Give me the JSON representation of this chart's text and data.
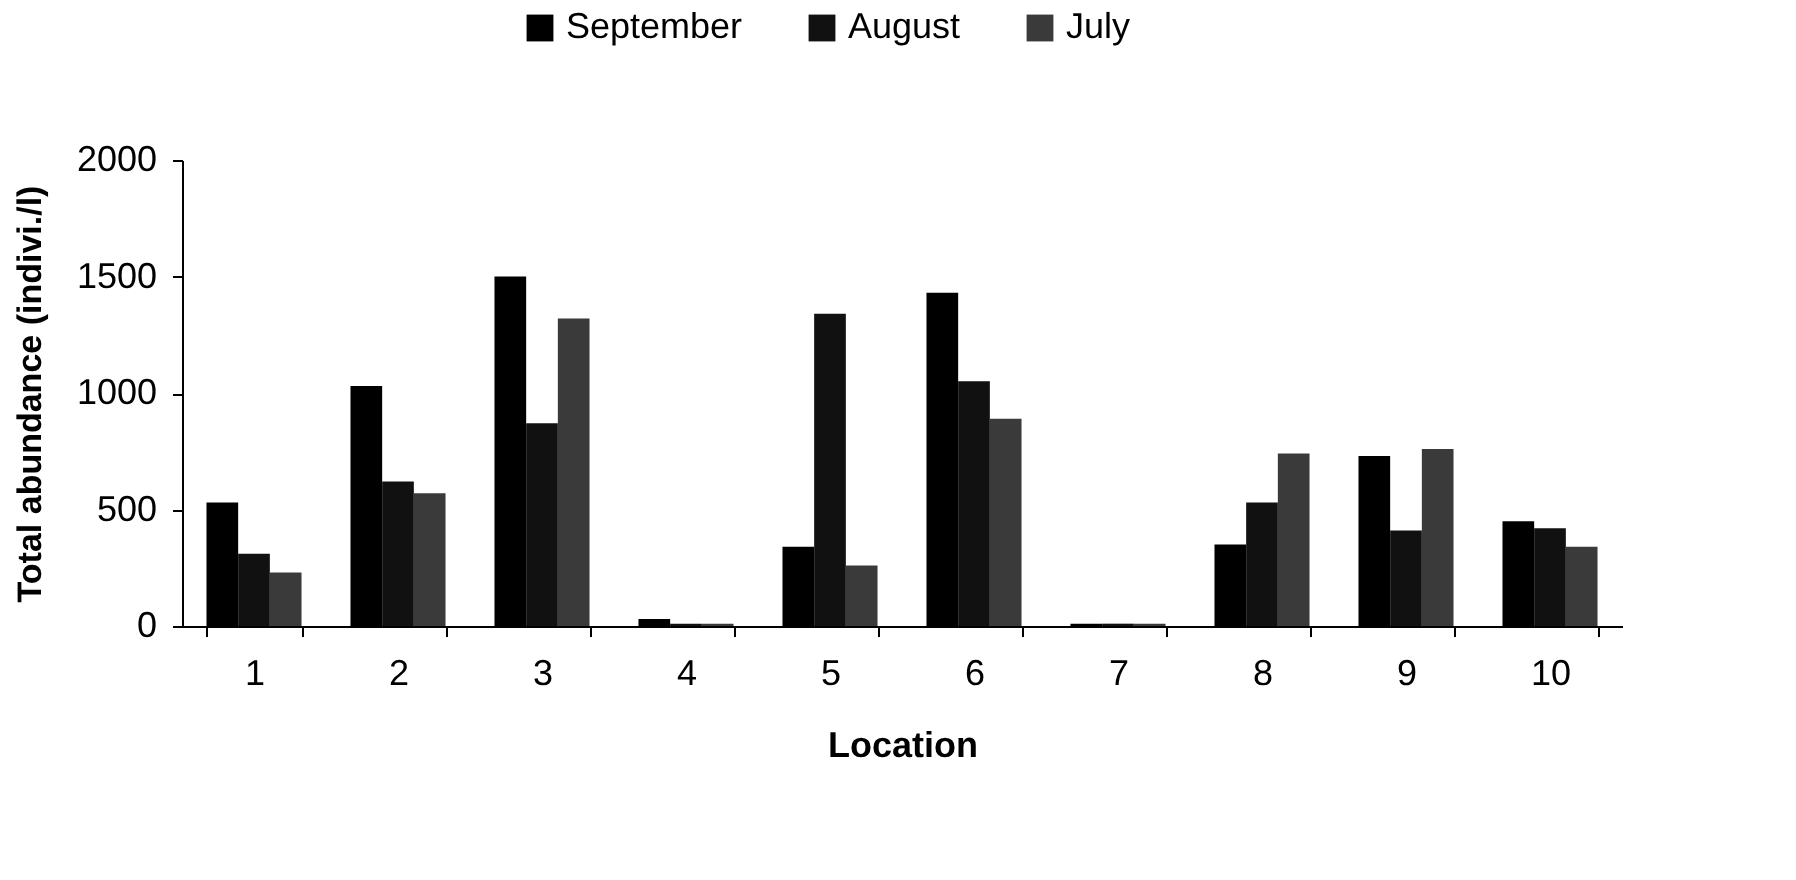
{
  "chart_data": {
    "type": "bar",
    "xlabel": "Location",
    "ylabel": "Total abundance (indivi./l)",
    "categories": [
      "1",
      "2",
      "3",
      "4",
      "5",
      "6",
      "7",
      "8",
      "9",
      "10"
    ],
    "series": [
      {
        "name": "September",
        "color": "#000000",
        "values": [
          530,
          1030,
          1500,
          30,
          340,
          1430,
          10,
          350,
          730,
          450
        ]
      },
      {
        "name": "August",
        "color": "#111111",
        "values": [
          310,
          620,
          870,
          10,
          1340,
          1050,
          10,
          530,
          410,
          420
        ]
      },
      {
        "name": "July",
        "color": "#3a3a3a",
        "values": [
          230,
          570,
          1320,
          10,
          260,
          890,
          10,
          740,
          760,
          340
        ]
      }
    ],
    "ylim": [
      0,
      2000
    ],
    "yticks": [
      0,
      500,
      1000,
      1500,
      2000
    ],
    "grid": false,
    "legend": "top"
  }
}
